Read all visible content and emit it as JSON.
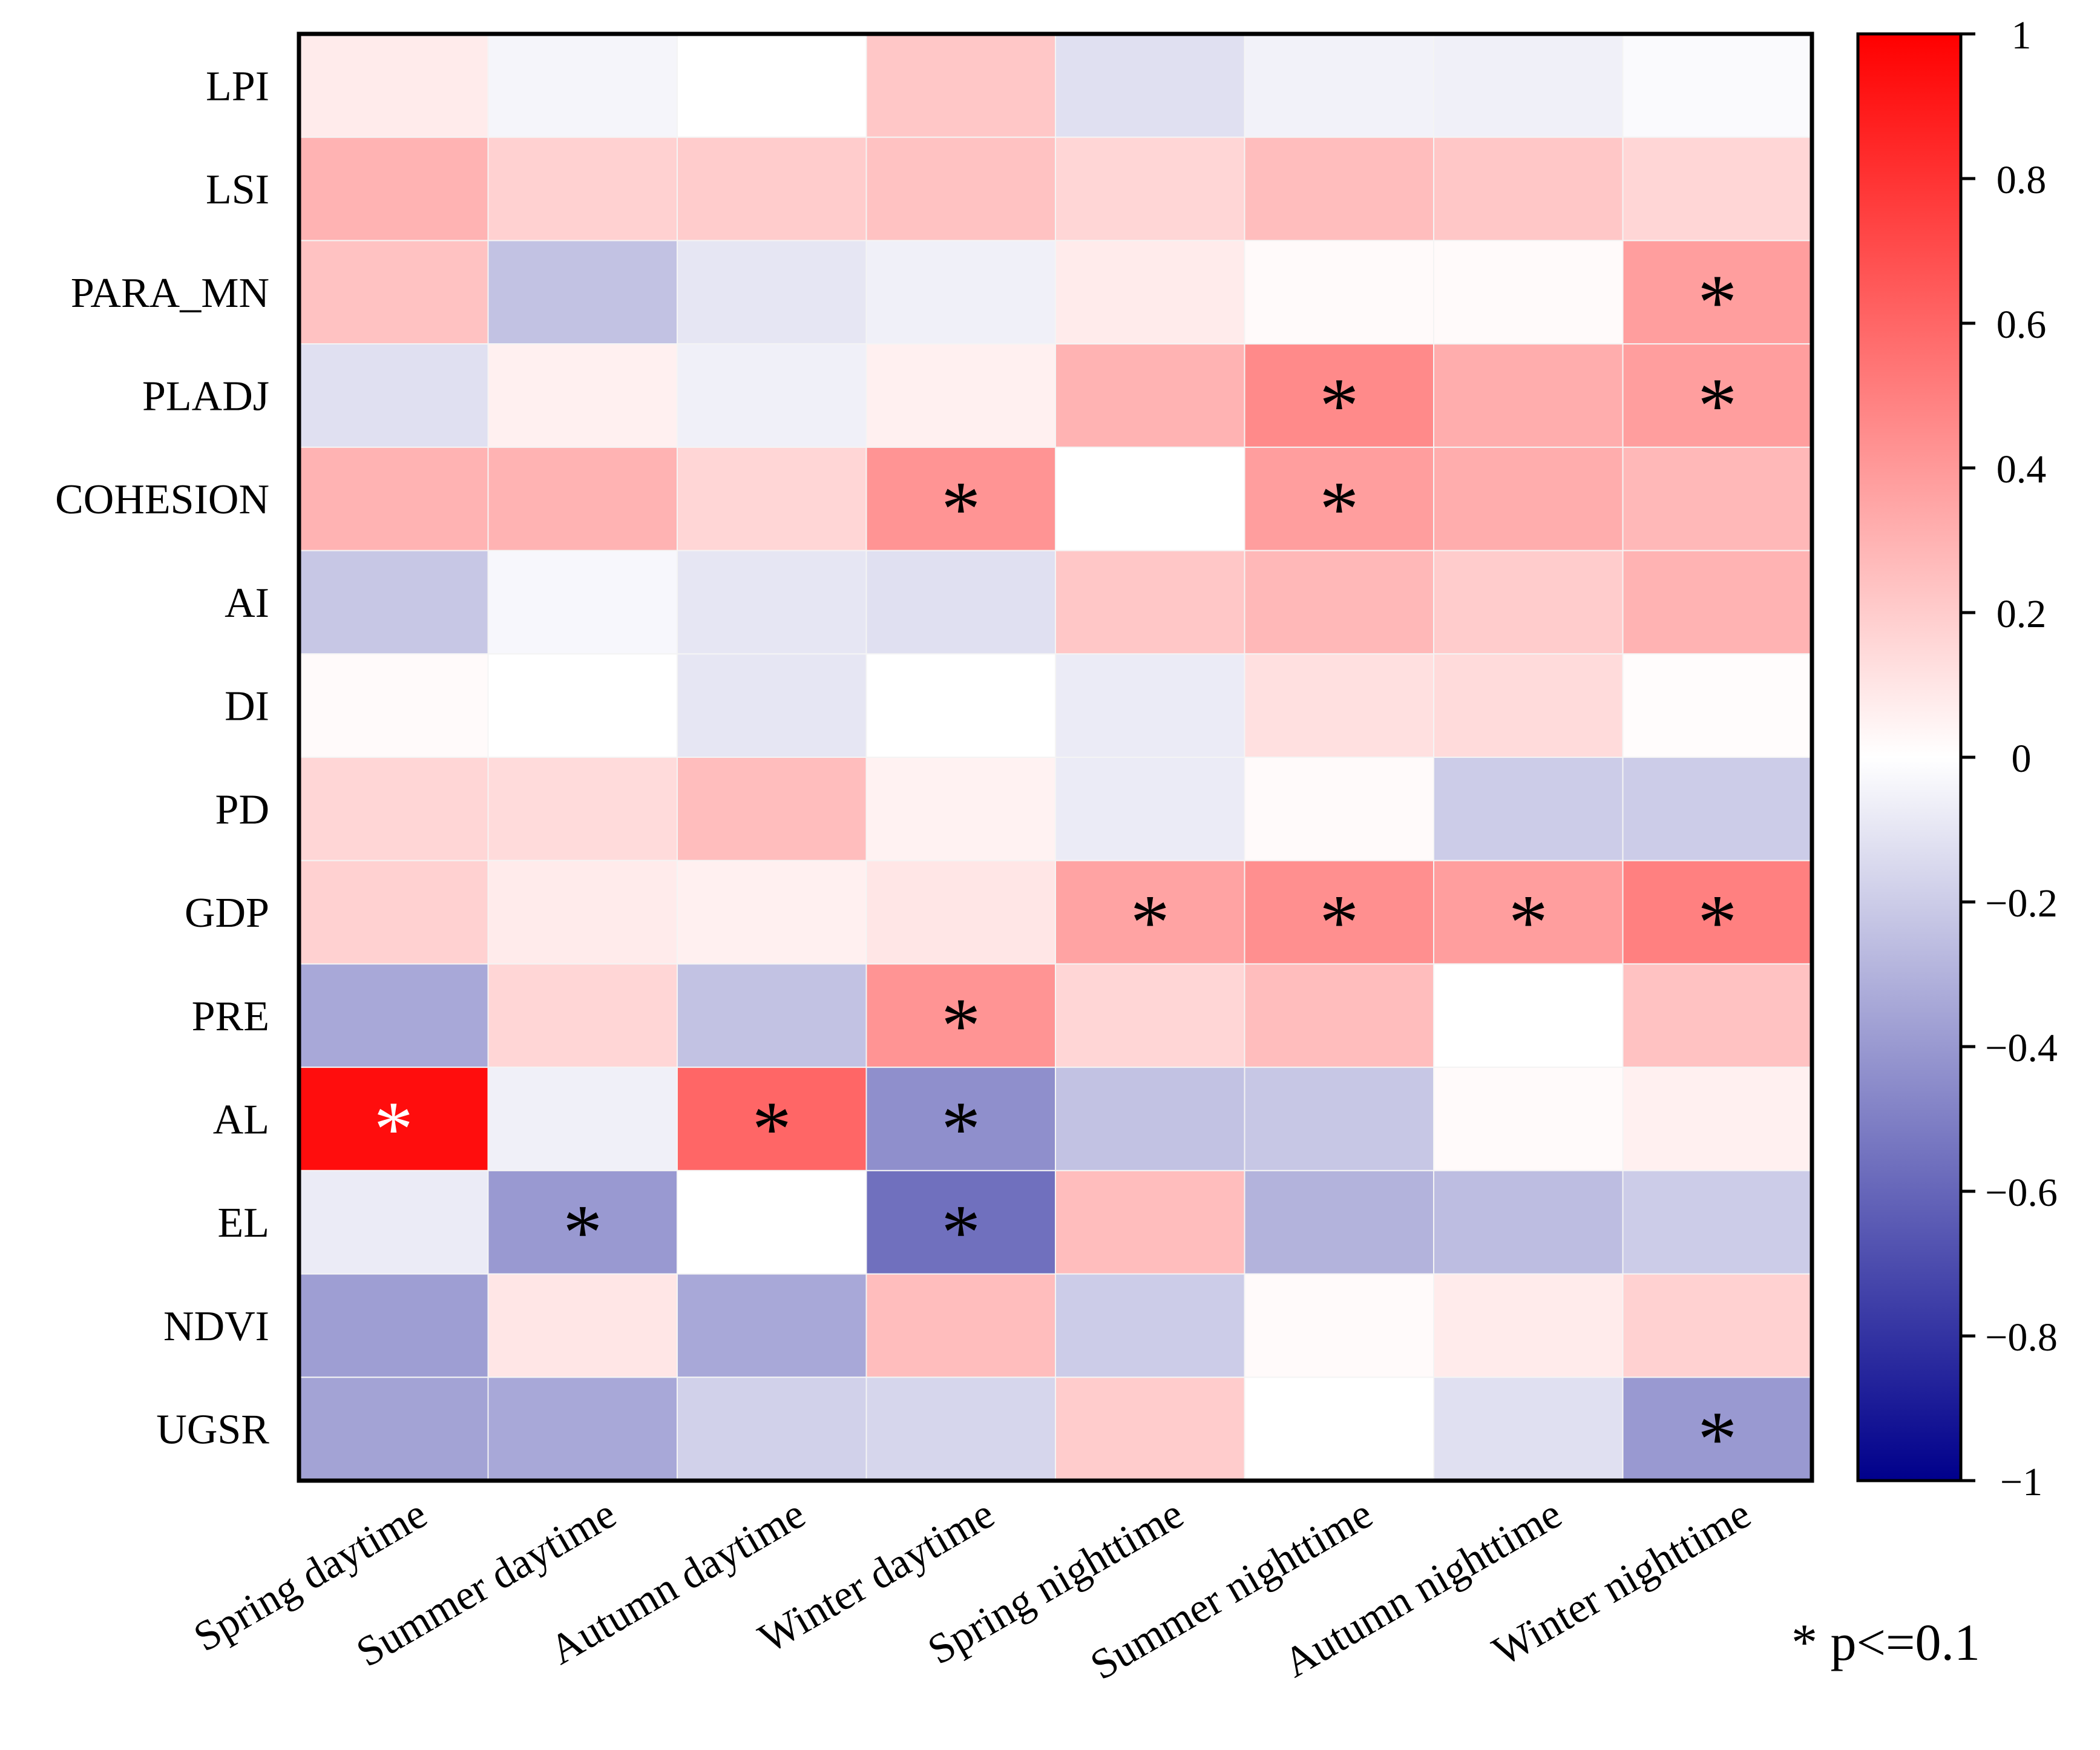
{
  "chart_data": {
    "type": "heatmap",
    "title": "",
    "xlabel": "",
    "ylabel": "",
    "rows": [
      "LPI",
      "LSI",
      "PARA_MN",
      "PLADJ",
      "COHESION",
      "AI",
      "DI",
      "PD",
      "GDP",
      "PRE",
      "AL",
      "EL",
      "NDVI",
      "UGSR"
    ],
    "columns": [
      "Spring daytime",
      "Summer daytime",
      "Autumn daytime",
      "Winter daytime",
      "Spring nighttime",
      "Summer nighttime",
      "Autumn nighttime",
      "Winter nighttime"
    ],
    "values": [
      [
        0.08,
        -0.04,
        0.0,
        0.22,
        -0.12,
        -0.05,
        -0.06,
        -0.02
      ],
      [
        0.3,
        0.18,
        0.2,
        0.24,
        0.16,
        0.26,
        0.22,
        0.16
      ],
      [
        0.24,
        -0.24,
        -0.1,
        -0.06,
        0.08,
        0.02,
        0.02,
        0.38
      ],
      [
        -0.12,
        0.06,
        -0.06,
        0.06,
        0.3,
        0.46,
        0.32,
        0.38
      ],
      [
        0.3,
        0.3,
        0.16,
        0.42,
        0.0,
        0.38,
        0.32,
        0.28
      ],
      [
        -0.22,
        -0.03,
        -0.1,
        -0.12,
        0.22,
        0.28,
        0.2,
        0.3
      ],
      [
        0.02,
        0.0,
        -0.1,
        0.0,
        -0.08,
        0.12,
        0.14,
        0.01
      ],
      [
        0.16,
        0.14,
        0.26,
        0.05,
        -0.08,
        0.02,
        -0.2,
        -0.2
      ],
      [
        0.18,
        0.08,
        0.06,
        0.1,
        0.36,
        0.44,
        0.38,
        0.5
      ],
      [
        -0.34,
        0.16,
        -0.24,
        0.42,
        0.16,
        0.26,
        0.0,
        0.24
      ],
      [
        0.95,
        -0.06,
        0.6,
        -0.44,
        -0.24,
        -0.22,
        0.02,
        0.06
      ],
      [
        -0.08,
        -0.4,
        0.0,
        -0.56,
        0.26,
        -0.3,
        -0.26,
        -0.2
      ],
      [
        -0.38,
        0.1,
        -0.34,
        0.26,
        -0.2,
        0.02,
        0.08,
        0.18
      ],
      [
        -0.36,
        -0.34,
        -0.18,
        -0.16,
        0.2,
        0.0,
        -0.12,
        -0.4
      ]
    ],
    "significant": [
      [
        0,
        0,
        0,
        0,
        0,
        0,
        0,
        0
      ],
      [
        0,
        0,
        0,
        0,
        0,
        0,
        0,
        0
      ],
      [
        0,
        0,
        0,
        0,
        0,
        0,
        0,
        1
      ],
      [
        0,
        0,
        0,
        0,
        0,
        1,
        0,
        1
      ],
      [
        0,
        0,
        0,
        1,
        0,
        1,
        0,
        0
      ],
      [
        0,
        0,
        0,
        0,
        0,
        0,
        0,
        0
      ],
      [
        0,
        0,
        0,
        0,
        0,
        0,
        0,
        0
      ],
      [
        0,
        0,
        0,
        0,
        0,
        0,
        0,
        0
      ],
      [
        0,
        0,
        0,
        0,
        1,
        1,
        1,
        1
      ],
      [
        0,
        0,
        0,
        1,
        0,
        0,
        0,
        0
      ],
      [
        1,
        0,
        1,
        1,
        0,
        0,
        0,
        0
      ],
      [
        0,
        1,
        0,
        1,
        0,
        0,
        0,
        0
      ],
      [
        0,
        0,
        0,
        0,
        0,
        0,
        0,
        0
      ],
      [
        0,
        0,
        0,
        0,
        0,
        0,
        0,
        1
      ]
    ],
    "significance_marker": "*",
    "significance_note": "* p<=0.1",
    "colorscale": {
      "min": -1,
      "max": 1,
      "low_color": "#00008b",
      "mid_color": "#ffffff",
      "high_color": "#ff0000",
      "ticks": [
        "1",
        "0.8",
        "0.6",
        "0.4",
        "0.2",
        "0",
        "−0.2",
        "−0.4",
        "−0.6",
        "−0.8",
        "−1"
      ],
      "tick_values": [
        1,
        0.8,
        0.6,
        0.4,
        0.2,
        0,
        -0.2,
        -0.4,
        -0.6,
        -0.8,
        -1
      ]
    }
  }
}
